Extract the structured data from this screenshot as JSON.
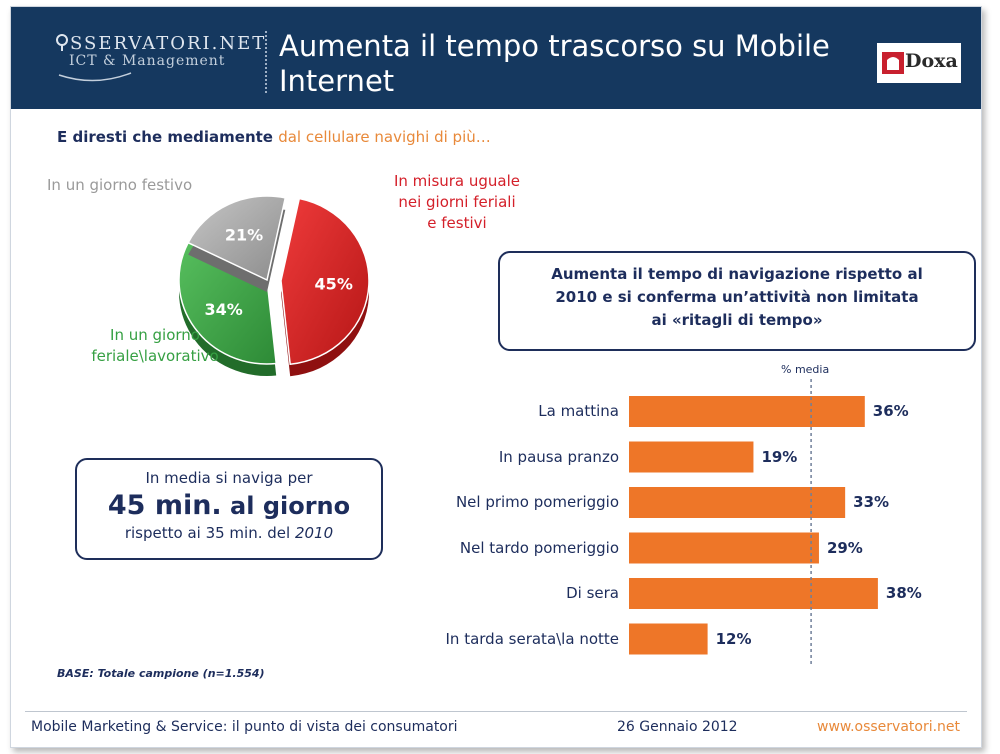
{
  "header": {
    "logo_line1": "SSERVATORI.NET",
    "logo_line2": "ICT & Management",
    "title": "Aumenta il tempo trascorso su Mobile Internet",
    "partner_logo": "Doxa",
    "colors": {
      "header_bg": "#15385f",
      "accent": "#e8893a"
    }
  },
  "subtitle": {
    "dark": "E diresti che mediamente",
    "orange": "dal cellulare navighi di più…"
  },
  "box_right": {
    "line1": "Aumenta il tempo di navigazione rispetto al",
    "line2": "2010 e si conferma un’attività non limitata",
    "line3": "ai «ritagli di tempo»"
  },
  "box_left": {
    "line1": "In media si naviga per",
    "line2_strong": "45 min.",
    "line2_rest": "al giorno",
    "line3_plain": "rispetto ai 35 min. del",
    "line3_italic": "2010"
  },
  "base_note": "BASE: Totale campione (n=1.554)",
  "footer": {
    "left": "Mobile Marketing & Service: il punto di vista dei consumatori",
    "middle": "26 Gennaio 2012",
    "right": "www.osservatori.net"
  },
  "chart_data": [
    {
      "type": "pie",
      "title": "",
      "slices": [
        {
          "label_line1": "In misura uguale",
          "label_line2": "nei giorni feriali",
          "label_line3": "e festivi",
          "value": 45,
          "display": "45%",
          "color": "#d62828",
          "exploded": true
        },
        {
          "label_line1": "In un giorno",
          "label_line2": "feriale\\lavorativo",
          "value": 34,
          "display": "34%",
          "color": "#3fa44a"
        },
        {
          "label_line1": "In un giorno festivo",
          "value": 21,
          "display": "21%",
          "color": "#a8a8a8"
        }
      ]
    },
    {
      "type": "bar",
      "orientation": "horizontal",
      "categories": [
        "La mattina",
        "In pausa pranzo",
        "Nel primo pomeriggio",
        "Nel tardo pomeriggio",
        "Di sera",
        "In tarda serata\\la notte"
      ],
      "values": [
        36,
        19,
        33,
        29,
        38,
        12
      ],
      "value_labels": [
        "36%",
        "19%",
        "33%",
        "29%",
        "38%",
        "12%"
      ],
      "bar_color": "#ee7628",
      "reference_line": {
        "label": "% media",
        "value": 27.8
      },
      "xlim": [
        0,
        40
      ]
    }
  ]
}
